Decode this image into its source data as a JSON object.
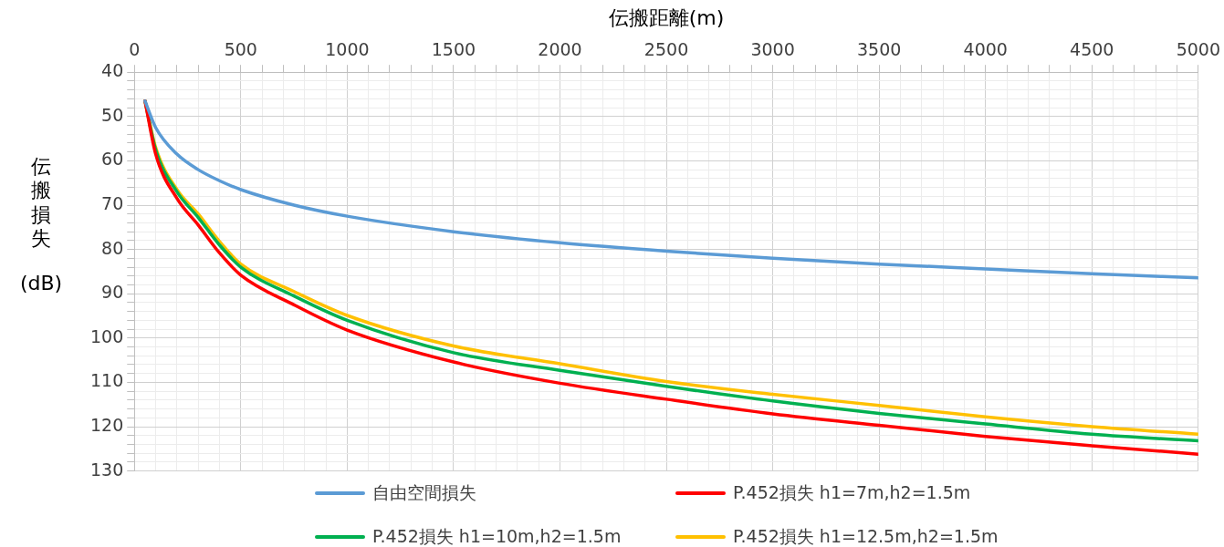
{
  "chart_data": {
    "type": "line",
    "xlabel": "伝搬距離(m)",
    "ylabel": "伝搬損失 (dB)",
    "x": [
      50,
      100,
      200,
      300,
      400,
      500,
      750,
      1000,
      1500,
      2000,
      2500,
      3000,
      3500,
      4000,
      4500,
      5000
    ],
    "series": [
      {
        "name": "自由空間損失",
        "color": "#5b9bd5",
        "values": [
          46.5,
          52.5,
          58.5,
          62.0,
          64.5,
          66.5,
          70.0,
          72.5,
          76.0,
          78.5,
          80.4,
          82.0,
          83.3,
          84.4,
          85.5,
          86.4
        ]
      },
      {
        "name": "P.452損失 h1=7m,h2=1.5m",
        "color": "#ff0000",
        "values": [
          46.5,
          58.5,
          68.5,
          74.5,
          80.8,
          85.8,
          92.5,
          98.2,
          105.4,
          110.2,
          113.8,
          117.1,
          119.7,
          122.2,
          124.3,
          126.2
        ]
      },
      {
        "name": "P.452損失 h1=10m,h2=1.5m",
        "color": "#00b050",
        "values": [
          46.5,
          57.5,
          67.0,
          72.8,
          79.0,
          84.0,
          90.5,
          96.0,
          103.3,
          107.3,
          110.9,
          114.2,
          117.0,
          119.4,
          121.7,
          123.2
        ]
      },
      {
        "name": "P.452損失 h1=12.5m,h2=1.5m",
        "color": "#ffc000",
        "values": [
          46.5,
          57.0,
          66.5,
          72.0,
          78.2,
          83.3,
          89.5,
          94.9,
          101.8,
          105.8,
          109.8,
          112.7,
          115.2,
          117.8,
          120.0,
          121.7
        ]
      }
    ],
    "xlim": [
      0,
      5000
    ],
    "xticks": [
      0,
      {
        "value": 100,
        "label": null
      },
      {
        "value": 200,
        "label": null
      },
      {
        "value": 300,
        "label": null
      },
      {
        "value": 400,
        "label": null
      },
      500,
      {
        "value": 600,
        "label": null
      },
      {
        "value": 700,
        "label": null
      },
      {
        "value": 800,
        "label": null
      },
      {
        "value": 900,
        "label": null
      },
      1000,
      {
        "value": 1100,
        "label": null
      },
      {
        "value": 1200,
        "label": null
      },
      {
        "value": 1300,
        "label": null
      },
      {
        "value": 1400,
        "label": null
      },
      1500,
      {
        "value": 1600,
        "label": null
      },
      {
        "value": 1700,
        "label": null
      },
      {
        "value": 1800,
        "label": null
      },
      {
        "value": 1900,
        "label": null
      },
      2000,
      {
        "value": 2100,
        "label": null
      },
      {
        "value": 2200,
        "label": null
      },
      {
        "value": 2300,
        "label": null
      },
      {
        "value": 2400,
        "label": null
      },
      2500,
      {
        "value": 2600,
        "label": null
      },
      {
        "value": 2700,
        "label": null
      },
      {
        "value": 2800,
        "label": null
      },
      {
        "value": 2900,
        "label": null
      },
      3000,
      {
        "value": 3100,
        "label": null
      },
      {
        "value": 3200,
        "label": null
      },
      {
        "value": 3300,
        "label": null
      },
      {
        "value": 3400,
        "label": null
      },
      3500,
      {
        "value": 3600,
        "label": null
      },
      {
        "value": 3700,
        "label": null
      },
      {
        "value": 3800,
        "label": null
      },
      {
        "value": 3900,
        "label": null
      },
      4000,
      {
        "value": 4100,
        "label": null
      },
      {
        "value": 4200,
        "label": null
      },
      {
        "value": 4300,
        "label": null
      },
      {
        "value": 4400,
        "label": null
      },
      4500,
      {
        "value": 4600,
        "label": null
      },
      {
        "value": 4700,
        "label": null
      },
      {
        "value": 4800,
        "label": null
      },
      {
        "value": 4900,
        "label": null
      },
      5000
    ],
    "ylim": [
      130,
      40
    ],
    "yticks": [
      40,
      {
        "value": 42,
        "label": null
      },
      {
        "value": 44,
        "label": null
      },
      {
        "value": 46,
        "label": null
      },
      {
        "value": 48,
        "label": null
      },
      50,
      {
        "value": 52,
        "label": null
      },
      {
        "value": 54,
        "label": null
      },
      {
        "value": 56,
        "label": null
      },
      {
        "value": 58,
        "label": null
      },
      60,
      {
        "value": 62,
        "label": null
      },
      {
        "value": 64,
        "label": null
      },
      {
        "value": 66,
        "label": null
      },
      {
        "value": 68,
        "label": null
      },
      70,
      {
        "value": 72,
        "label": null
      },
      {
        "value": 74,
        "label": null
      },
      {
        "value": 76,
        "label": null
      },
      {
        "value": 78,
        "label": null
      },
      80,
      {
        "value": 82,
        "label": null
      },
      {
        "value": 84,
        "label": null
      },
      {
        "value": 86,
        "label": null
      },
      {
        "value": 88,
        "label": null
      },
      90,
      {
        "value": 92,
        "label": null
      },
      {
        "value": 94,
        "label": null
      },
      {
        "value": 96,
        "label": null
      },
      {
        "value": 98,
        "label": null
      },
      100,
      {
        "value": 102,
        "label": null
      },
      {
        "value": 104,
        "label": null
      },
      {
        "value": 106,
        "label": null
      },
      {
        "value": 108,
        "label": null
      },
      110,
      {
        "value": 112,
        "label": null
      },
      {
        "value": 114,
        "label": null
      },
      {
        "value": 116,
        "label": null
      },
      {
        "value": 118,
        "label": null
      },
      120,
      {
        "value": 122,
        "label": null
      },
      {
        "value": 124,
        "label": null
      },
      {
        "value": 126,
        "label": null
      },
      {
        "value": 128,
        "label": null
      },
      130
    ],
    "grid": true,
    "legend": "bottom",
    "marker": "none",
    "line_style": "solid"
  }
}
